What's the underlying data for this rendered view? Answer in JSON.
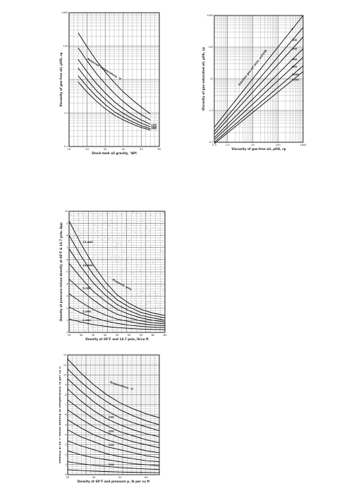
{
  "chart_data": [
    {
      "id": "c1",
      "type": "line",
      "xlabel": "Stock-tank oil gravity, °API",
      "ylabel": "Viscosity of gas-free oil, μOD, cp",
      "xlim": [
        10,
        60
      ],
      "ylim": [
        0.1,
        1000
      ],
      "yscale": "log",
      "grid": true,
      "xticks": [
        "10",
        "20",
        "30",
        "40",
        "50",
        "60"
      ],
      "yticks": [
        "1000",
        "100",
        "1.0",
        "0.1"
      ],
      "annotation": "Reservoir temperature, °F",
      "curve_labels": [
        "100",
        "200",
        "300"
      ],
      "series": [
        {
          "name": "",
          "x": [
            15,
            20,
            25,
            30,
            35,
            40,
            45,
            50,
            55
          ],
          "y": [
            250,
            95,
            38,
            17,
            8.2,
            4.3,
            2.5,
            1.5,
            0.95
          ]
        },
        {
          "name": "",
          "x": [
            15,
            20,
            25,
            30,
            35,
            40,
            45,
            50,
            55
          ],
          "y": [
            90,
            36,
            15.5,
            7.5,
            3.9,
            2.2,
            1.35,
            0.9,
            0.62
          ]
        },
        {
          "name": "",
          "x": [
            15,
            20,
            25,
            30,
            35,
            40,
            45,
            50,
            55
          ],
          "y": [
            40,
            17,
            7.8,
            4.0,
            2.2,
            1.35,
            0.88,
            0.62,
            0.46
          ]
        },
        {
          "name": "100",
          "x": [
            15,
            20,
            25,
            30,
            35,
            40,
            45,
            50,
            55
          ],
          "y": [
            22,
            10,
            4.8,
            2.6,
            1.5,
            0.98,
            0.68,
            0.5,
            0.39
          ]
        },
        {
          "name": "200",
          "x": [
            15,
            20,
            25,
            30,
            35,
            40,
            45,
            50,
            55
          ],
          "y": [
            13,
            6.2,
            3.2,
            1.8,
            1.1,
            0.76,
            0.55,
            0.42,
            0.34
          ]
        },
        {
          "name": "300",
          "x": [
            15,
            20,
            25,
            30,
            35,
            40,
            45,
            50,
            55
          ],
          "y": [
            8.5,
            4.2,
            2.3,
            1.35,
            0.87,
            0.62,
            0.47,
            0.37,
            0.31
          ]
        }
      ]
    },
    {
      "id": "c2",
      "type": "line",
      "xlabel": "Viscosity of gas-free oil, μOD, cp",
      "ylabel": "Viscosity of gas-saturated oil, μOb, cp",
      "xlim": [
        0.3,
        1000
      ],
      "ylim": [
        0.1,
        1000
      ],
      "xscale": "log",
      "yscale": "log",
      "grid": true,
      "xticks": [
        "0.3",
        "1.0",
        "10",
        "100",
        "1000"
      ],
      "yticks": [
        "1000",
        "100",
        "10",
        "1.0",
        "0.1"
      ],
      "annotation": "Solution gas-oil ratio, scf/STB",
      "curve_labels": [
        "0",
        "100",
        "200",
        "400",
        "600",
        "1000",
        "1500"
      ],
      "series": [
        {
          "name": "0",
          "x": [
            0.3,
            1000
          ],
          "y": [
            0.3,
            1000
          ]
        },
        {
          "name": "100",
          "x": [
            0.3,
            1000
          ],
          "y": [
            0.22,
            420
          ]
        },
        {
          "name": "200",
          "x": [
            0.3,
            1000
          ],
          "y": [
            0.18,
            210
          ]
        },
        {
          "name": "400",
          "x": [
            0.3,
            1000
          ],
          "y": [
            0.14,
            90
          ]
        },
        {
          "name": "600",
          "x": [
            0.3,
            1000
          ],
          "y": [
            0.12,
            48
          ]
        },
        {
          "name": "1000",
          "x": [
            0.3,
            1000
          ],
          "y": [
            0.1,
            26
          ]
        },
        {
          "name": "1500",
          "x": [
            0.3,
            1000
          ],
          "y": [
            0.09,
            17
          ]
        }
      ]
    },
    {
      "id": "c3",
      "type": "line",
      "xlabel": "Density at 60°F and 14.7 psia, lb/cu ft",
      "ylabel": "Density at pressure minus density at 60°F & 14.7 psia, Δρp",
      "xlim": [
        25,
        65
      ],
      "ylim": [
        0,
        10
      ],
      "grid": true,
      "xticks": [
        "25",
        "30",
        "35",
        "40",
        "45",
        "50",
        "55",
        "60",
        "65"
      ],
      "yticks": [
        "0",
        "1",
        "2",
        "3",
        "4",
        "5",
        "6",
        "7",
        "8",
        "9",
        "10"
      ],
      "annotation": "Pressure, psia",
      "curve_labels": [
        "15,000",
        "10,000",
        "5,000",
        "2,000",
        "1,000"
      ],
      "series": [
        {
          "name": "15,000",
          "x": [
            25,
            30,
            35,
            40,
            45,
            50,
            55,
            60,
            65
          ],
          "y": [
            9.2,
            7.3,
            5.6,
            4.2,
            3.1,
            2.4,
            1.9,
            1.6,
            1.4
          ]
        },
        {
          "name": "",
          "x": [
            25,
            30,
            35,
            40,
            45,
            50,
            55,
            60,
            65
          ],
          "y": [
            8.0,
            6.3,
            4.8,
            3.6,
            2.7,
            2.1,
            1.65,
            1.4,
            1.2
          ]
        },
        {
          "name": "10,000",
          "x": [
            25,
            30,
            35,
            40,
            45,
            50,
            55,
            60,
            65
          ],
          "y": [
            6.9,
            5.4,
            4.1,
            3.1,
            2.3,
            1.8,
            1.4,
            1.2,
            1.0
          ]
        },
        {
          "name": "",
          "x": [
            25,
            30,
            35,
            40,
            45,
            50,
            55,
            60,
            65
          ],
          "y": [
            5.7,
            4.5,
            3.4,
            2.6,
            1.9,
            1.5,
            1.2,
            1.0,
            0.85
          ]
        },
        {
          "name": "5,000",
          "x": [
            25,
            30,
            35,
            40,
            45,
            50,
            55,
            60,
            65
          ],
          "y": [
            4.4,
            3.5,
            2.7,
            2.0,
            1.5,
            1.2,
            0.95,
            0.8,
            0.7
          ]
        },
        {
          "name": "",
          "x": [
            25,
            30,
            35,
            40,
            45,
            50,
            55,
            60,
            65
          ],
          "y": [
            3.2,
            2.5,
            1.9,
            1.45,
            1.1,
            0.9,
            0.72,
            0.62,
            0.55
          ]
        },
        {
          "name": "2,000",
          "x": [
            25,
            30,
            35,
            40,
            45,
            50,
            55,
            60,
            65
          ],
          "y": [
            2.1,
            1.6,
            1.25,
            0.95,
            0.75,
            0.6,
            0.5,
            0.44,
            0.4
          ]
        },
        {
          "name": "1,000",
          "x": [
            25,
            30,
            35,
            40,
            45,
            50,
            55,
            60,
            65
          ],
          "y": [
            1.1,
            0.85,
            0.65,
            0.5,
            0.4,
            0.33,
            0.28,
            0.25,
            0.23
          ]
        }
      ]
    },
    {
      "id": "c4",
      "type": "line",
      "xlabel": "Density at 60°F and pressure p, lb per cu ft",
      "ylabel": "Density at 60°F minus density at temperature, lb per cu ft",
      "xlim": [
        30,
        65
      ],
      "ylim": [
        0,
        12
      ],
      "grid": true,
      "xticks": [
        "30",
        "40",
        "50",
        "60"
      ],
      "yticks": [
        "0",
        "1",
        "2",
        "3",
        "4",
        "5",
        "6",
        "7",
        "8",
        "9",
        "10",
        "11",
        "12"
      ],
      "annotation": "Temperature, °F",
      "curve_labels": [
        "240",
        "200",
        "160",
        "100"
      ],
      "series": [
        {
          "name": "",
          "x": [
            30,
            35,
            40,
            45,
            50,
            55,
            60,
            65
          ],
          "y": [
            11.6,
            10.2,
            9.0,
            8.0,
            7.2,
            6.6,
            6.1,
            5.7
          ]
        },
        {
          "name": "",
          "x": [
            30,
            35,
            40,
            45,
            50,
            55,
            60,
            65
          ],
          "y": [
            10.6,
            9.3,
            8.2,
            7.3,
            6.5,
            5.9,
            5.4,
            5.0
          ]
        },
        {
          "name": "",
          "x": [
            30,
            35,
            40,
            45,
            50,
            55,
            60,
            65
          ],
          "y": [
            9.6,
            8.4,
            7.3,
            6.4,
            5.7,
            5.2,
            4.8,
            4.4
          ]
        },
        {
          "name": "240",
          "x": [
            30,
            35,
            40,
            45,
            50,
            55,
            60,
            65
          ],
          "y": [
            8.6,
            7.4,
            6.4,
            5.6,
            5.0,
            4.5,
            4.1,
            3.8
          ]
        },
        {
          "name": "",
          "x": [
            30,
            35,
            40,
            45,
            50,
            55,
            60,
            65
          ],
          "y": [
            7.5,
            6.5,
            5.6,
            4.9,
            4.3,
            3.9,
            3.5,
            3.2
          ]
        },
        {
          "name": "200",
          "x": [
            30,
            35,
            40,
            45,
            50,
            55,
            60,
            65
          ],
          "y": [
            6.5,
            5.6,
            4.8,
            4.2,
            3.7,
            3.3,
            3.0,
            2.7
          ]
        },
        {
          "name": "",
          "x": [
            30,
            35,
            40,
            45,
            50,
            55,
            60,
            65
          ],
          "y": [
            5.5,
            4.7,
            4.0,
            3.5,
            3.1,
            2.7,
            2.4,
            2.2
          ]
        },
        {
          "name": "160",
          "x": [
            30,
            35,
            40,
            45,
            50,
            55,
            60,
            65
          ],
          "y": [
            4.5,
            3.8,
            3.3,
            2.8,
            2.5,
            2.2,
            1.9,
            1.7
          ]
        },
        {
          "name": "",
          "x": [
            30,
            35,
            40,
            45,
            50,
            55,
            60,
            65
          ],
          "y": [
            3.4,
            2.9,
            2.5,
            2.1,
            1.8,
            1.6,
            1.4,
            1.3
          ]
        },
        {
          "name": "",
          "x": [
            30,
            35,
            40,
            45,
            50,
            55,
            60,
            65
          ],
          "y": [
            2.4,
            2.0,
            1.7,
            1.5,
            1.3,
            1.1,
            1.0,
            0.9
          ]
        },
        {
          "name": "100",
          "x": [
            30,
            35,
            40,
            45,
            50,
            55,
            60,
            65
          ],
          "y": [
            1.3,
            1.1,
            0.95,
            0.82,
            0.72,
            0.64,
            0.57,
            0.52
          ]
        },
        {
          "name": "",
          "x": [
            30,
            35,
            40,
            45,
            50,
            55,
            60,
            65
          ],
          "y": [
            0.5,
            0.42,
            0.36,
            0.31,
            0.27,
            0.24,
            0.22,
            0.2
          ]
        }
      ]
    }
  ]
}
